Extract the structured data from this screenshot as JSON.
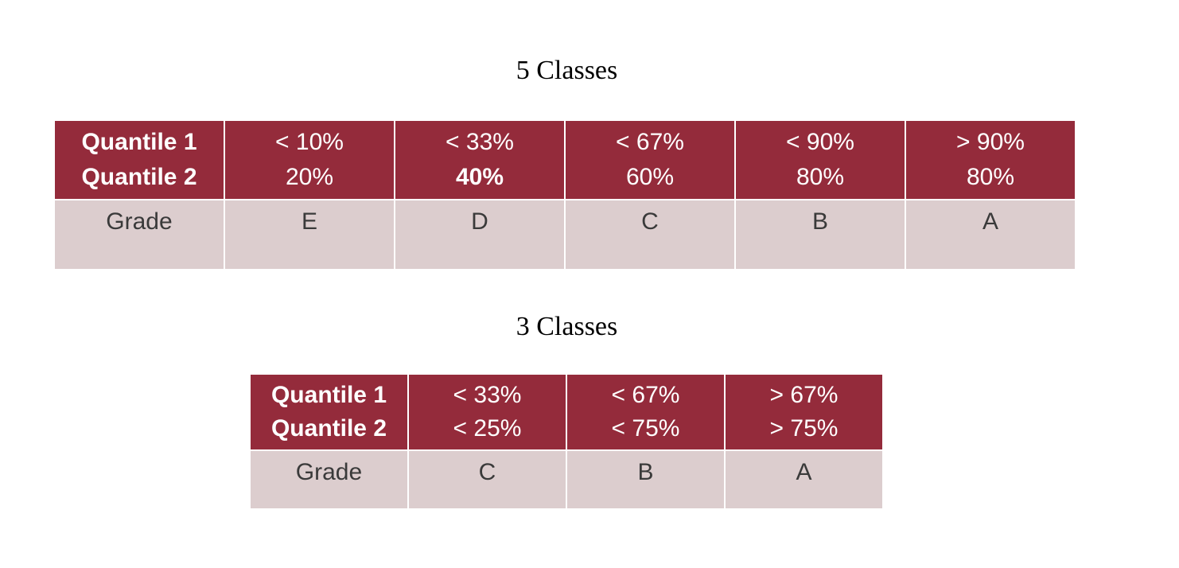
{
  "five_classes": {
    "title": "5 Classes",
    "header_label_1": "Quantile 1",
    "header_label_2": "Quantile 2",
    "row_label": "Grade",
    "columns": [
      {
        "q1": "< 10%",
        "q2": "20%",
        "grade": "E"
      },
      {
        "q1": "< 33%",
        "q2": "40%",
        "grade": "D"
      },
      {
        "q1": "< 67%",
        "q2": "60%",
        "grade": "C"
      },
      {
        "q1": "< 90%",
        "q2": "80%",
        "grade": "B"
      },
      {
        "q1": "> 90%",
        "q2": "80%",
        "grade": "A"
      }
    ]
  },
  "three_classes": {
    "title": "3 Classes",
    "header_label_1": "Quantile 1",
    "header_label_2": "Quantile 2",
    "row_label": "Grade",
    "columns": [
      {
        "q1": "< 33%",
        "q2": "< 25%",
        "grade": "C"
      },
      {
        "q1": "< 67%",
        "q2": "< 75%",
        "grade": "B"
      },
      {
        "q1": "> 67%",
        "q2": "> 75%",
        "grade": "A"
      }
    ]
  },
  "colors": {
    "header_background": "#942b3b",
    "grade_background": "#dccdce"
  }
}
